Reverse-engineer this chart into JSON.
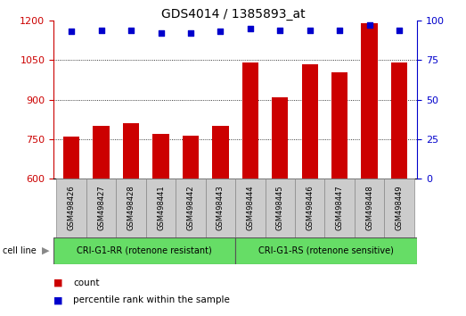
{
  "title": "GDS4014 / 1385893_at",
  "categories": [
    "GSM498426",
    "GSM498427",
    "GSM498428",
    "GSM498441",
    "GSM498442",
    "GSM498443",
    "GSM498444",
    "GSM498445",
    "GSM498446",
    "GSM498447",
    "GSM498448",
    "GSM498449"
  ],
  "bar_values": [
    760,
    800,
    810,
    768,
    762,
    800,
    1040,
    910,
    1035,
    1005,
    1190,
    1040
  ],
  "percentile_values": [
    93,
    94,
    94,
    92,
    92,
    93,
    95,
    94,
    94,
    94,
    97,
    94
  ],
  "bar_color": "#cc0000",
  "dot_color": "#0000cc",
  "ylim_left": [
    600,
    1200
  ],
  "ylim_right": [
    0,
    100
  ],
  "yticks_left": [
    600,
    750,
    900,
    1050,
    1200
  ],
  "yticks_right": [
    0,
    25,
    50,
    75,
    100
  ],
  "grid_values": [
    750,
    900,
    1050
  ],
  "group1_label": "CRI-G1-RR (rotenone resistant)",
  "group2_label": "CRI-G1-RS (rotenone sensitive)",
  "group1_count": 6,
  "group2_count": 6,
  "cell_line_label": "cell line",
  "arrow_char": "▶",
  "legend_count_label": "count",
  "legend_percentile_label": "percentile rank within the sample",
  "group_bg_color": "#66dd66",
  "tick_bg_color": "#cccccc",
  "fig_bg_color": "#ffffff",
  "bar_width": 0.55,
  "title_fontsize": 10,
  "axis_fontsize": 8,
  "label_fontsize": 7,
  "legend_fontsize": 7.5
}
